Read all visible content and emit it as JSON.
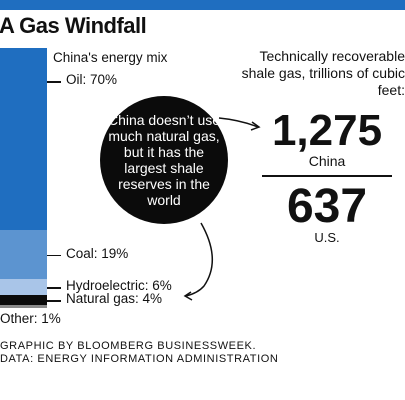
{
  "header": {
    "title": "A Gas Windfall"
  },
  "chart_data": {
    "type": "stacked-bar",
    "title": "China's energy mix",
    "unit": "%",
    "segments": [
      {
        "name": "Oil",
        "value": 70,
        "label": "Oil: 70%",
        "color": "#1f6ec0"
      },
      {
        "name": "Coal",
        "value": 19,
        "label": "Coal: 19%",
        "color": "#5c94d0"
      },
      {
        "name": "Hydroelectric",
        "value": 6,
        "label": "Hydroelectric: 6%",
        "color": "#a9c5e8"
      },
      {
        "name": "Natural gas",
        "value": 4,
        "label": "Natural gas: 4%",
        "color": "#0b0b0b"
      },
      {
        "name": "Other",
        "value": 1,
        "label": "Other: 1%",
        "color": "#8a8a8a"
      }
    ]
  },
  "callout": {
    "text": "China doesn’t use much natural gas, but it has the largest shale reserves in the world"
  },
  "comparison": {
    "heading": "Technically recoverable shale gas, trillions of cubic feet:",
    "items": [
      {
        "value": "1,275",
        "label": "China",
        "color": "#1f6ec0"
      },
      {
        "value": "637",
        "label": "U.S.",
        "color": "#111111"
      }
    ]
  },
  "footer": {
    "credit": "GRAPHIC BY BLOOMBERG BUSINESSWEEK.",
    "source": "DATA: ENERGY INFORMATION ADMINISTRATION"
  }
}
